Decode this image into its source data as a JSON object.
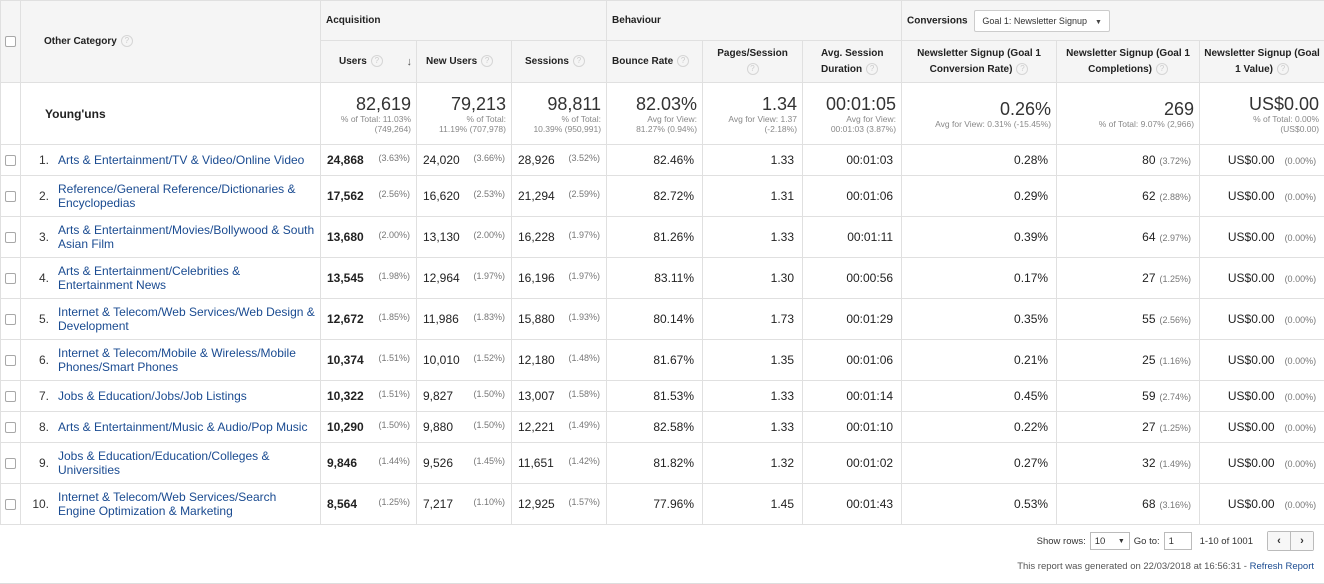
{
  "header": {
    "dimension_label": "Other Category",
    "groups": {
      "acquisition": "Acquisition",
      "behaviour": "Behaviour",
      "conversions": "Conversions"
    },
    "goal_select": "Goal 1: Newsletter Signup",
    "columns": {
      "users": "Users",
      "new_users": "New Users",
      "sessions": "Sessions",
      "bounce_rate": "Bounce Rate",
      "pages_session": "Pages/Session",
      "avg_duration": "Avg. Session Duration",
      "conv_rate": "Newsletter Signup (Goal 1 Conversion Rate)",
      "completions": "Newsletter Signup (Goal 1 Completions)",
      "value": "Newsletter Signup (Goal 1 Value)"
    },
    "qm": "?",
    "sort_arrow": "↓"
  },
  "summary": {
    "segment": "Young'uns",
    "users": {
      "value": "82,619",
      "sub1": "% of Total: 11.03%",
      "sub2": "(749,264)"
    },
    "new_users": {
      "value": "79,213",
      "sub1": "% of Total:",
      "sub2": "11.19% (707,978)"
    },
    "sessions": {
      "value": "98,811",
      "sub1": "% of Total:",
      "sub2": "10.39% (950,991)"
    },
    "bounce_rate": {
      "value": "82.03%",
      "sub1": "Avg for View:",
      "sub2": "81.27% (0.94%)"
    },
    "pages_session": {
      "value": "1.34",
      "sub1": "Avg for View: 1.37",
      "sub2": "(-2.18%)"
    },
    "avg_duration": {
      "value": "00:01:05",
      "sub1": "Avg for View:",
      "sub2": "00:01:03 (3.87%)"
    },
    "conv_rate": {
      "value": "0.26%",
      "sub1": "Avg for View: 0.31% (-15.45%)",
      "sub2": ""
    },
    "completions": {
      "value": "269",
      "sub1": "% of Total: 9.07% (2,966)",
      "sub2": ""
    },
    "value": {
      "value": "US$0.00",
      "sub1": "% of Total: 0.00%",
      "sub2": "(US$0.00)"
    }
  },
  "rows": [
    {
      "idx": "1.",
      "cat": "Arts & Entertainment/TV & Video/Online Video",
      "users": "24,868",
      "users_pct": "(3.63%)",
      "new_users": "24,020",
      "new_users_pct": "(3.66%)",
      "sessions": "28,926",
      "sessions_pct": "(3.52%)",
      "bounce": "82.46%",
      "pages": "1.33",
      "duration": "00:01:03",
      "conv": "0.28%",
      "comp": "80",
      "comp_pct": "(3.72%)",
      "value": "US$0.00",
      "value_pct": "(0.00%)"
    },
    {
      "idx": "2.",
      "cat": "Reference/General Reference/Dictionaries & Encyclopedias",
      "users": "17,562",
      "users_pct": "(2.56%)",
      "new_users": "16,620",
      "new_users_pct": "(2.53%)",
      "sessions": "21,294",
      "sessions_pct": "(2.59%)",
      "bounce": "82.72%",
      "pages": "1.31",
      "duration": "00:01:06",
      "conv": "0.29%",
      "comp": "62",
      "comp_pct": "(2.88%)",
      "value": "US$0.00",
      "value_pct": "(0.00%)"
    },
    {
      "idx": "3.",
      "cat": "Arts & Entertainment/Movies/Bollywood & South Asian Film",
      "users": "13,680",
      "users_pct": "(2.00%)",
      "new_users": "13,130",
      "new_users_pct": "(2.00%)",
      "sessions": "16,228",
      "sessions_pct": "(1.97%)",
      "bounce": "81.26%",
      "pages": "1.33",
      "duration": "00:01:11",
      "conv": "0.39%",
      "comp": "64",
      "comp_pct": "(2.97%)",
      "value": "US$0.00",
      "value_pct": "(0.00%)"
    },
    {
      "idx": "4.",
      "cat": "Arts & Entertainment/Celebrities & Entertainment News",
      "users": "13,545",
      "users_pct": "(1.98%)",
      "new_users": "12,964",
      "new_users_pct": "(1.97%)",
      "sessions": "16,196",
      "sessions_pct": "(1.97%)",
      "bounce": "83.11%",
      "pages": "1.30",
      "duration": "00:00:56",
      "conv": "0.17%",
      "comp": "27",
      "comp_pct": "(1.25%)",
      "value": "US$0.00",
      "value_pct": "(0.00%)"
    },
    {
      "idx": "5.",
      "cat": "Internet & Telecom/Web Services/Web Design & Development",
      "users": "12,672",
      "users_pct": "(1.85%)",
      "new_users": "11,986",
      "new_users_pct": "(1.83%)",
      "sessions": "15,880",
      "sessions_pct": "(1.93%)",
      "bounce": "80.14%",
      "pages": "1.73",
      "duration": "00:01:29",
      "conv": "0.35%",
      "comp": "55",
      "comp_pct": "(2.56%)",
      "value": "US$0.00",
      "value_pct": "(0.00%)"
    },
    {
      "idx": "6.",
      "cat": "Internet & Telecom/Mobile & Wireless/Mobile Phones/Smart Phones",
      "users": "10,374",
      "users_pct": "(1.51%)",
      "new_users": "10,010",
      "new_users_pct": "(1.52%)",
      "sessions": "12,180",
      "sessions_pct": "(1.48%)",
      "bounce": "81.67%",
      "pages": "1.35",
      "duration": "00:01:06",
      "conv": "0.21%",
      "comp": "25",
      "comp_pct": "(1.16%)",
      "value": "US$0.00",
      "value_pct": "(0.00%)"
    },
    {
      "idx": "7.",
      "cat": "Jobs & Education/Jobs/Job Listings",
      "users": "10,322",
      "users_pct": "(1.51%)",
      "new_users": "9,827",
      "new_users_pct": "(1.50%)",
      "sessions": "13,007",
      "sessions_pct": "(1.58%)",
      "bounce": "81.53%",
      "pages": "1.33",
      "duration": "00:01:14",
      "conv": "0.45%",
      "comp": "59",
      "comp_pct": "(2.74%)",
      "value": "US$0.00",
      "value_pct": "(0.00%)"
    },
    {
      "idx": "8.",
      "cat": "Arts & Entertainment/Music & Audio/Pop Music",
      "users": "10,290",
      "users_pct": "(1.50%)",
      "new_users": "9,880",
      "new_users_pct": "(1.50%)",
      "sessions": "12,221",
      "sessions_pct": "(1.49%)",
      "bounce": "82.58%",
      "pages": "1.33",
      "duration": "00:01:10",
      "conv": "0.22%",
      "comp": "27",
      "comp_pct": "(1.25%)",
      "value": "US$0.00",
      "value_pct": "(0.00%)"
    },
    {
      "idx": "9.",
      "cat": "Jobs & Education/Education/Colleges & Universities",
      "users": "9,846",
      "users_pct": "(1.44%)",
      "new_users": "9,526",
      "new_users_pct": "(1.45%)",
      "sessions": "11,651",
      "sessions_pct": "(1.42%)",
      "bounce": "81.82%",
      "pages": "1.32",
      "duration": "00:01:02",
      "conv": "0.27%",
      "comp": "32",
      "comp_pct": "(1.49%)",
      "value": "US$0.00",
      "value_pct": "(0.00%)"
    },
    {
      "idx": "10.",
      "cat": "Internet & Telecom/Web Services/Search Engine Optimization & Marketing",
      "users": "8,564",
      "users_pct": "(1.25%)",
      "new_users": "7,217",
      "new_users_pct": "(1.10%)",
      "sessions": "12,925",
      "sessions_pct": "(1.57%)",
      "bounce": "77.96%",
      "pages": "1.45",
      "duration": "00:01:43",
      "conv": "0.53%",
      "comp": "68",
      "comp_pct": "(3.16%)",
      "value": "US$0.00",
      "value_pct": "(0.00%)"
    }
  ],
  "footer": {
    "show_rows_label": "Show rows:",
    "show_rows_value": "10",
    "goto_label": "Go to:",
    "goto_value": "1",
    "range": "1-10 of 1001",
    "prev": "‹",
    "next": "›",
    "generated_text": "This report was generated on 22/03/2018 at 16:56:31 - ",
    "refresh_link": "Refresh Report"
  }
}
